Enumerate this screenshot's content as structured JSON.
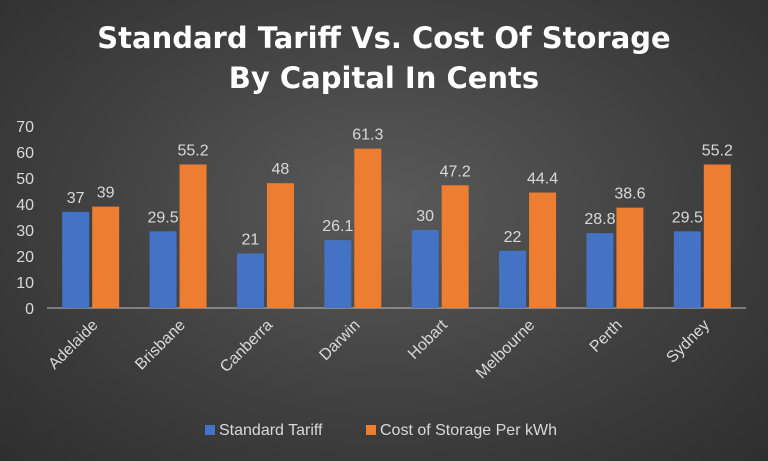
{
  "chart_data": {
    "type": "bar",
    "title_line1": "Standard Tariff Vs. Cost Of Storage",
    "title_line2": "By Capital In Cents",
    "categories": [
      "Adelaide",
      "Brisbane",
      "Canberra",
      "Darwin",
      "Hobart",
      "Melbourne",
      "Perth",
      "Sydney"
    ],
    "series": [
      {
        "name": "Standard Tariff",
        "color": "#4472c4",
        "values": [
          37,
          29.5,
          21,
          26.1,
          30,
          22,
          28.8,
          29.5
        ]
      },
      {
        "name": "Cost of Storage Per kWh",
        "color": "#ed7d31",
        "values": [
          39,
          55.2,
          48,
          61.3,
          47.2,
          44.4,
          38.6,
          55.2
        ]
      }
    ],
    "ylim": [
      0,
      70
    ],
    "yticks": [
      0,
      10,
      20,
      30,
      40,
      50,
      60,
      70
    ],
    "legend_position": "bottom",
    "grid": false
  }
}
